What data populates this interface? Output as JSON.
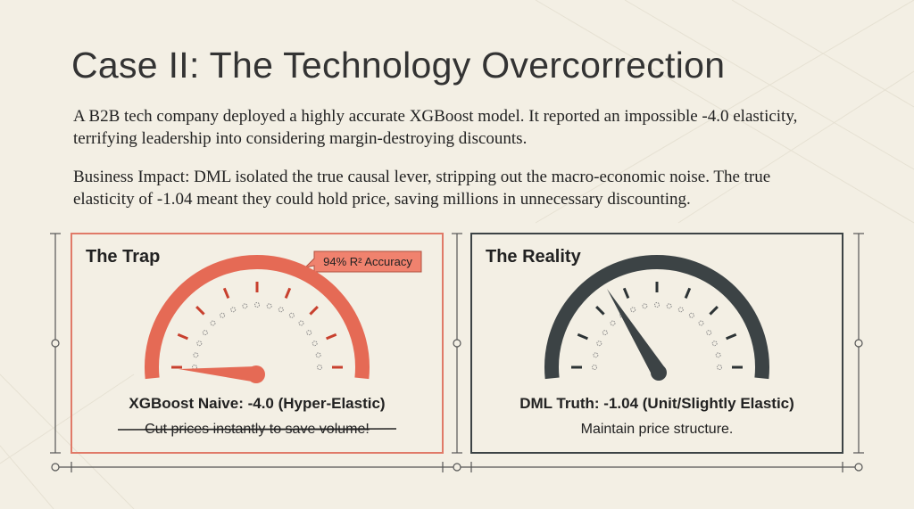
{
  "title": "Case II: The Technology Overcorrection",
  "paragraphs": [
    "A B2B tech company deployed a highly accurate XGBoost model. It reported an impossible -4.0 elasticity, terrifying leadership into considering margin-destroying discounts.",
    "Business Impact: DML isolated the true causal lever, stripping out the macro-economic noise. The true elasticity of -1.04 meant they could hold price, saving millions in unnecessary discounting."
  ],
  "panels": [
    {
      "title": "The Trap",
      "badge": "94% R² Accuracy",
      "caption": "XGBoost Naive: -4.0 (Hyper-Elastic)",
      "note": "Cut prices instantly to save volume!"
    },
    {
      "title": "The Reality",
      "caption": "DML Truth: -1.04 (Unit/Slightly Elastic)",
      "note": "Maintain price structure."
    }
  ]
}
